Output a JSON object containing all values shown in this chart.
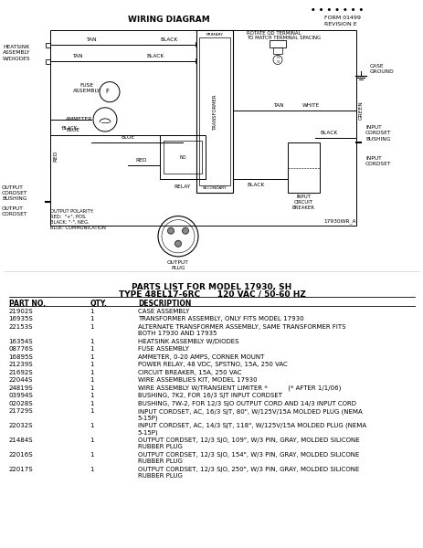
{
  "title_wiring": "WIRING DIAGRAM",
  "form_text": "FORM 01499\nREVISION E",
  "dots": "• • • • • • •",
  "diagram_note": "ROTATE QD TERMINAL\nTO MATCH TERMINAL SPACING",
  "ref_number": "17930WR_A",
  "parts_title1": "PARTS LIST FOR MODEL 17930, SH",
  "parts_title2": "TYPE 48EL17-6RC      120 VAC / 50-60 HZ",
  "col_headers": [
    "PART NO.",
    "QTY.",
    "DESCRIPTION"
  ],
  "parts": [
    [
      "21902S",
      "1",
      "CASE ASSEMBLY"
    ],
    [
      "16935S",
      "1",
      "TRANSFORMER ASSEMBLY, ONLY FITS MODEL 17930"
    ],
    [
      "22153S",
      "1",
      "ALTERNATE TRANSFORMER ASSEMBLY, SAME TRANSFORMER FITS\nBOTH 17930 AND 17935"
    ],
    [
      "16354S",
      "1",
      "HEATSINK ASSEMBLY W/DIODES"
    ],
    [
      "08776S",
      "1",
      "FUSE ASSEMBLY"
    ],
    [
      "16895S",
      "1",
      "AMMETER, 0-20 AMPS, CORNER MOUNT"
    ],
    [
      "21239S",
      "1",
      "POWER RELAY, 48 VDC, SPSTNO, 15A, 250 VAC"
    ],
    [
      "21692S",
      "1",
      "CIRCUIT BREAKER, 15A, 250 VAC"
    ],
    [
      "22044S",
      "1",
      "WIRE ASSEMBLIES KIT, MODEL 17930"
    ],
    [
      "24819S",
      "1",
      "WIRE ASSEMBLY W/TRANSIENT LIMITER *          (* AFTER 1/1/06)"
    ],
    [
      "03994S",
      "1",
      "BUSHING, 7K2, FOR 16/3 SJT INPUT CORDSET"
    ],
    [
      "02028S",
      "1",
      "BUSHING, 7W-2, FOR 12/3 SJO OUTPUT CORD AND 14/3 INPUT CORD"
    ],
    [
      "21729S",
      "1",
      "INPUT CORDSET, AC, 16/3 SJT, 80\", W/125V/15A MOLDED PLUG (NEMA\n5-15P)"
    ],
    [
      "22032S",
      "1",
      "INPUT CORDSET, AC, 14/3 SJT, 118\", W/125V/15A MOLDED PLUG (NEMA\n5-15P)"
    ],
    [
      "21484S",
      "1",
      "OUTPUT CORDSET, 12/3 SJO, 109\", W/3 PIN, GRAY, MOLDED SILICONE\nRUBBER PLUG"
    ],
    [
      "22016S",
      "1",
      "OUTPUT CORDSET, 12/3 SJO, 154\", W/3 PIN, GRAY, MOLDED SILICONE\nRUBBER PLUG"
    ],
    [
      "22017S",
      "1",
      "OUTPUT CORDSET, 12/3 SJO, 250\", W/3 PIN, GRAY, MOLDED SILICONE\nRUBBER PLUG"
    ]
  ],
  "bg_color": "#ffffff",
  "line_color": "#000000",
  "text_color": "#000000"
}
